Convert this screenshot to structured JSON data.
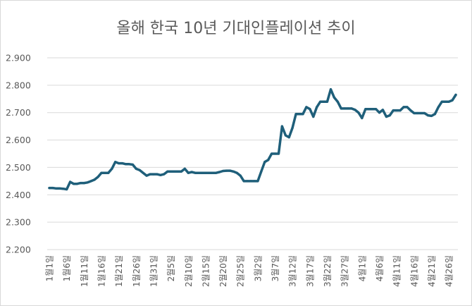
{
  "chart_data": {
    "type": "line",
    "title": "올해 한국 10년 기대인플레이션 추이",
    "xlabel": "",
    "ylabel": "",
    "ylim": [
      2.2,
      2.9
    ],
    "grid": "horizontal",
    "legend": "none",
    "yticks": [
      "2.200",
      "2.300",
      "2.400",
      "2.500",
      "2.600",
      "2.700",
      "2.800",
      "2.900"
    ],
    "xtick_labels": [
      "1월1일",
      "1월6일",
      "1월11일",
      "1월16일",
      "1월21일",
      "1월26일",
      "1월31일",
      "2월5일",
      "2월10일",
      "2월15일",
      "2월20일",
      "2월25일",
      "3월2일",
      "3월7일",
      "3월12일",
      "3월17일",
      "3월22일",
      "3월27일",
      "4월1일",
      "4월6일",
      "4월11일",
      "4월16일",
      "4월21일",
      "4월26일"
    ],
    "line_color": "#1f5f7a",
    "series": [
      {
        "name": "",
        "values": [
          2.425,
          2.425,
          2.423,
          2.423,
          2.422,
          2.42,
          2.447,
          2.44,
          2.44,
          2.443,
          2.443,
          2.445,
          2.45,
          2.455,
          2.465,
          2.48,
          2.48,
          2.48,
          2.495,
          2.52,
          2.515,
          2.515,
          2.512,
          2.512,
          2.51,
          2.495,
          2.49,
          2.48,
          2.47,
          2.475,
          2.475,
          2.475,
          2.472,
          2.475,
          2.485,
          2.485,
          2.485,
          2.485,
          2.485,
          2.495,
          2.48,
          2.483,
          2.48,
          2.48,
          2.48,
          2.48,
          2.48,
          2.48,
          2.48,
          2.483,
          2.487,
          2.488,
          2.488,
          2.485,
          2.48,
          2.47,
          2.45,
          2.45,
          2.45,
          2.45,
          2.45,
          2.485,
          2.52,
          2.527,
          2.55,
          2.55,
          2.55,
          2.65,
          2.617,
          2.61,
          2.645,
          2.695,
          2.695,
          2.695,
          2.72,
          2.713,
          2.685,
          2.72,
          2.74,
          2.74,
          2.74,
          2.785,
          2.755,
          2.74,
          2.715,
          2.715,
          2.715,
          2.715,
          2.71,
          2.7,
          2.68,
          2.713,
          2.713,
          2.713,
          2.713,
          2.7,
          2.71,
          2.685,
          2.69,
          2.708,
          2.708,
          2.708,
          2.72,
          2.72,
          2.708,
          2.698,
          2.698,
          2.698,
          2.698,
          2.69,
          2.688,
          2.695,
          2.72,
          2.74,
          2.74,
          2.74,
          2.745,
          2.765
        ]
      }
    ]
  }
}
